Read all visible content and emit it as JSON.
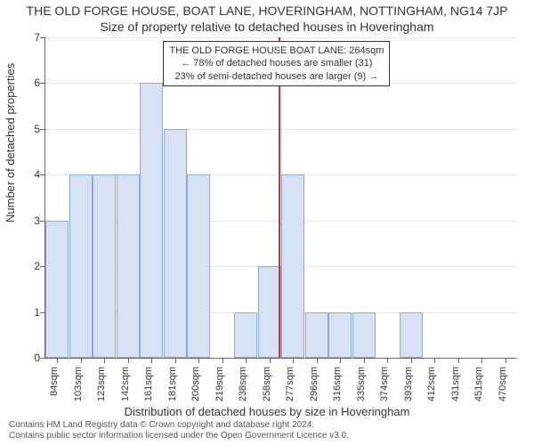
{
  "title": "THE OLD FORGE HOUSE, BOAT LANE, HOVERINGHAM, NOTTINGHAM, NG14 7JP",
  "subtitle": "Size of property relative to detached houses in Hoveringham",
  "ylabel": "Number of detached properties",
  "xlabel": "Distribution of detached houses by size in Hoveringham",
  "footer_line1": "Contains HM Land Registry data © Crown copyright and database right 2024.",
  "footer_line2": "Contains public sector information licensed under the Open Government Licence v3.0.",
  "chart": {
    "type": "bar",
    "ylim": [
      0,
      7
    ],
    "yticks": [
      0,
      1,
      2,
      3,
      4,
      5,
      6,
      7
    ],
    "categories": [
      "84sqm",
      "103sqm",
      "123sqm",
      "142sqm",
      "161sqm",
      "181sqm",
      "200sqm",
      "219sqm",
      "238sqm",
      "258sqm",
      "277sqm",
      "296sqm",
      "316sqm",
      "335sqm",
      "374sqm",
      "393sqm",
      "412sqm",
      "431sqm",
      "451sqm",
      "470sqm"
    ],
    "values": [
      3,
      4,
      4,
      4,
      6,
      5,
      4,
      0,
      1,
      2,
      4,
      1,
      1,
      1,
      0,
      1,
      0,
      0,
      0,
      0
    ],
    "bar_fill": "#d6e2f3",
    "bar_border": "#8ea9d6",
    "background": "#ffffff",
    "grid_color": "#cccccc",
    "axis_color": "#666666",
    "marker_color": "#cc3333",
    "marker_category_index": 9.4,
    "info_lines": [
      "THE OLD FORGE HOUSE BOAT LANE: 264sqm",
      "← 78% of detached houses are smaller (31)",
      "23% of semi-detached houses are larger (9) →"
    ]
  }
}
